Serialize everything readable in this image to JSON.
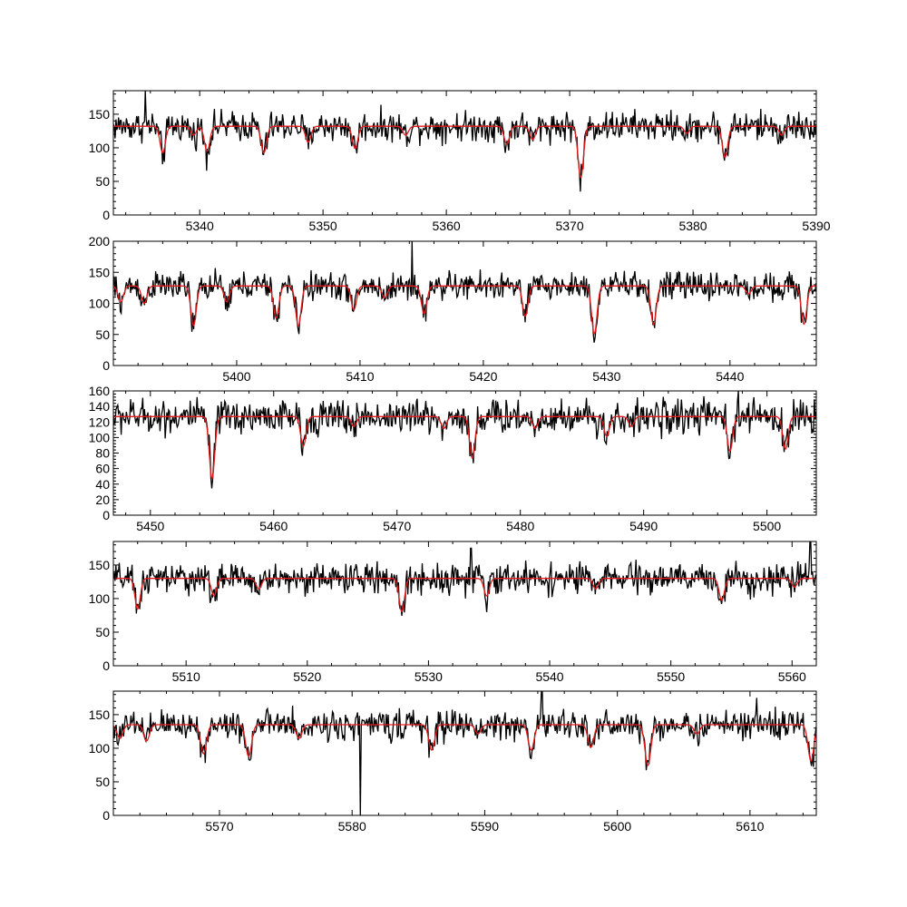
{
  "colors": {
    "observed": "#000000",
    "model": "#e41a1c",
    "background": "#ffffff"
  },
  "chart_data": [
    {
      "type": "line",
      "title": "",
      "xlabel": "",
      "ylabel": "",
      "xlim": [
        5333,
        5390
      ],
      "ylim": [
        0,
        185
      ],
      "xticks": [
        5340,
        5350,
        5360,
        5370,
        5380,
        5390
      ],
      "yticks": [
        0,
        50,
        100,
        150
      ],
      "continuum": 132,
      "lines": [
        {
          "x": 5337.0,
          "depth": 0.3
        },
        {
          "x": 5339.5,
          "depth": 0.1
        },
        {
          "x": 5340.6,
          "depth": 0.28
        },
        {
          "x": 5345.2,
          "depth": 0.3
        },
        {
          "x": 5348.8,
          "depth": 0.18
        },
        {
          "x": 5352.6,
          "depth": 0.25
        },
        {
          "x": 5356.7,
          "depth": 0.1
        },
        {
          "x": 5364.9,
          "depth": 0.2
        },
        {
          "x": 5367.0,
          "depth": 0.15
        },
        {
          "x": 5370.9,
          "depth": 0.58
        },
        {
          "x": 5379.5,
          "depth": 0.08
        },
        {
          "x": 5382.6,
          "depth": 0.35
        },
        {
          "x": 5387.2,
          "depth": 0.1
        }
      ],
      "spikes": [
        {
          "x": 5335.6,
          "y": 185
        }
      ],
      "series": [
        {
          "name": "",
          "role": "observed",
          "color": "#000000"
        },
        {
          "name": "",
          "role": "model",
          "color": "#e41a1c"
        }
      ]
    },
    {
      "type": "line",
      "title": "",
      "xlabel": "",
      "ylabel": "",
      "xlim": [
        5390,
        5447
      ],
      "ylim": [
        0,
        200
      ],
      "xticks": [
        5400,
        5410,
        5420,
        5430,
        5440
      ],
      "yticks": [
        0,
        50,
        100,
        150,
        200
      ],
      "continuum": 128,
      "lines": [
        {
          "x": 5390.6,
          "depth": 0.2
        },
        {
          "x": 5392.5,
          "depth": 0.22
        },
        {
          "x": 5396.5,
          "depth": 0.5
        },
        {
          "x": 5399.2,
          "depth": 0.2
        },
        {
          "x": 5403.2,
          "depth": 0.4
        },
        {
          "x": 5405.0,
          "depth": 0.5
        },
        {
          "x": 5409.5,
          "depth": 0.3
        },
        {
          "x": 5412.0,
          "depth": 0.15
        },
        {
          "x": 5415.2,
          "depth": 0.35
        },
        {
          "x": 5423.4,
          "depth": 0.38
        },
        {
          "x": 5429.0,
          "depth": 0.6
        },
        {
          "x": 5433.8,
          "depth": 0.48
        },
        {
          "x": 5441.5,
          "depth": 0.1
        },
        {
          "x": 5446.0,
          "depth": 0.48
        }
      ],
      "spikes": [
        {
          "x": 5414.2,
          "y": 200
        }
      ],
      "series": [
        {
          "name": "",
          "role": "observed",
          "color": "#000000"
        },
        {
          "name": "",
          "role": "model",
          "color": "#e41a1c"
        }
      ]
    },
    {
      "type": "line",
      "title": "",
      "xlabel": "",
      "ylabel": "",
      "xlim": [
        5447,
        5504
      ],
      "ylim": [
        0,
        160
      ],
      "xticks": [
        5450,
        5460,
        5470,
        5480,
        5490,
        5500
      ],
      "yticks": [
        0,
        20,
        40,
        60,
        80,
        100,
        120,
        140,
        160
      ],
      "continuum": 127,
      "lines": [
        {
          "x": 5455.0,
          "depth": 0.63
        },
        {
          "x": 5462.4,
          "depth": 0.3
        },
        {
          "x": 5466.5,
          "depth": 0.1
        },
        {
          "x": 5473.8,
          "depth": 0.12
        },
        {
          "x": 5476.1,
          "depth": 0.42
        },
        {
          "x": 5481.2,
          "depth": 0.12
        },
        {
          "x": 5487.0,
          "depth": 0.2
        },
        {
          "x": 5489.0,
          "depth": 0.1
        },
        {
          "x": 5497.0,
          "depth": 0.35
        },
        {
          "x": 5501.5,
          "depth": 0.33
        }
      ],
      "spikes": [
        {
          "x": 5497.7,
          "y": 160
        }
      ],
      "series": [
        {
          "name": "",
          "role": "observed",
          "color": "#000000"
        },
        {
          "name": "",
          "role": "model",
          "color": "#e41a1c"
        }
      ]
    },
    {
      "type": "line",
      "title": "",
      "xlabel": "",
      "ylabel": "",
      "xlim": [
        5504,
        5562
      ],
      "ylim": [
        0,
        185
      ],
      "xticks": [
        5510,
        5520,
        5530,
        5540,
        5550,
        5560
      ],
      "yticks": [
        0,
        50,
        100,
        150
      ],
      "continuum": 130,
      "lines": [
        {
          "x": 5506.0,
          "depth": 0.35
        },
        {
          "x": 5512.3,
          "depth": 0.2
        },
        {
          "x": 5516.0,
          "depth": 0.12
        },
        {
          "x": 5527.8,
          "depth": 0.38
        },
        {
          "x": 5534.8,
          "depth": 0.2
        },
        {
          "x": 5543.8,
          "depth": 0.12
        },
        {
          "x": 5554.2,
          "depth": 0.25
        },
        {
          "x": 5560.2,
          "depth": 0.1
        }
      ],
      "spikes": [
        {
          "x": 5533.5,
          "y": 175
        },
        {
          "x": 5561.5,
          "y": 185
        }
      ],
      "series": [
        {
          "name": "",
          "role": "observed",
          "color": "#000000"
        },
        {
          "name": "",
          "role": "model",
          "color": "#e41a1c"
        }
      ]
    },
    {
      "type": "line",
      "title": "",
      "xlabel": "",
      "ylabel": "",
      "xlim": [
        5562,
        5615
      ],
      "ylim": [
        0,
        185
      ],
      "xticks": [
        5570,
        5580,
        5590,
        5600,
        5610
      ],
      "yticks": [
        0,
        50,
        100,
        150
      ],
      "continuum": 135,
      "lines": [
        {
          "x": 5562.5,
          "depth": 0.15
        },
        {
          "x": 5564.5,
          "depth": 0.18
        },
        {
          "x": 5568.8,
          "depth": 0.32
        },
        {
          "x": 5572.2,
          "depth": 0.35
        },
        {
          "x": 5576.0,
          "depth": 0.15
        },
        {
          "x": 5586.0,
          "depth": 0.28
        },
        {
          "x": 5589.5,
          "depth": 0.1
        },
        {
          "x": 5593.5,
          "depth": 0.28
        },
        {
          "x": 5598.0,
          "depth": 0.25
        },
        {
          "x": 5602.3,
          "depth": 0.45
        },
        {
          "x": 5606.0,
          "depth": 0.1
        },
        {
          "x": 5614.6,
          "depth": 0.4
        }
      ],
      "spikes": [
        {
          "x": 5580.6,
          "y": 0
        },
        {
          "x": 5594.3,
          "y": 185
        },
        {
          "x": 5610.5,
          "y": 175
        }
      ],
      "series": [
        {
          "name": "",
          "role": "observed",
          "color": "#000000"
        },
        {
          "name": "",
          "role": "model",
          "color": "#e41a1c"
        }
      ]
    }
  ]
}
